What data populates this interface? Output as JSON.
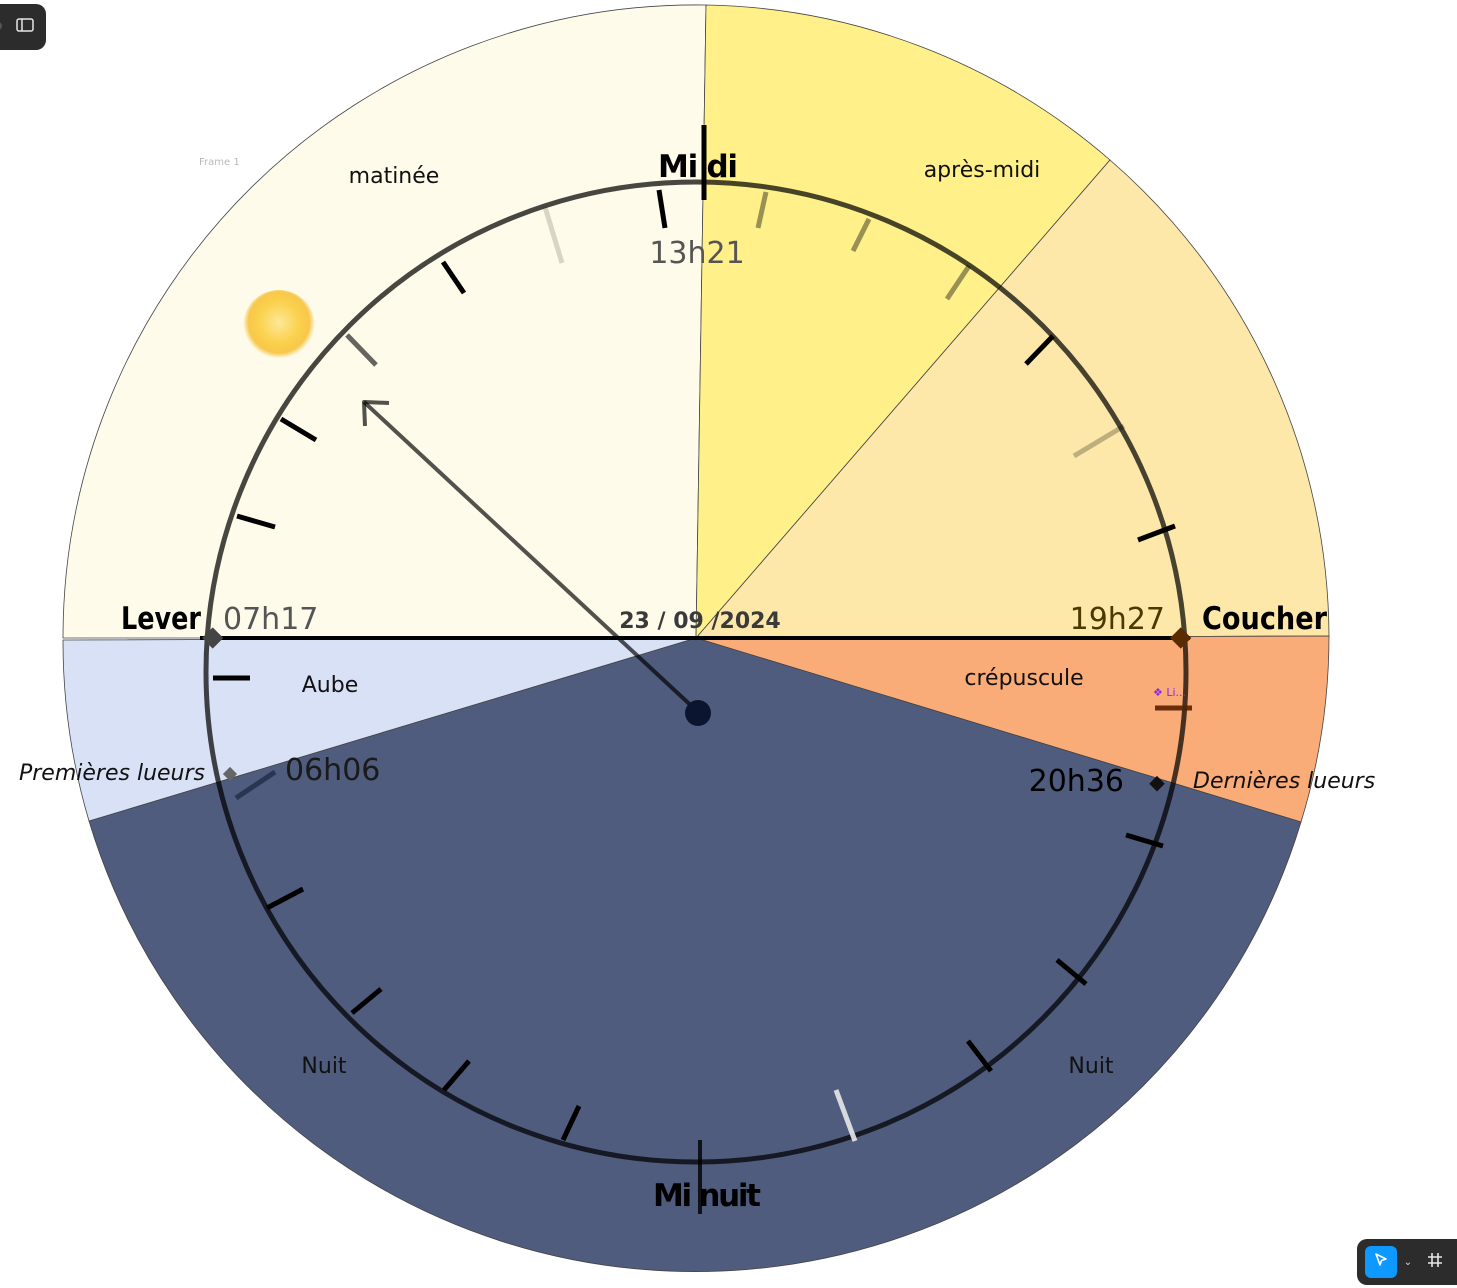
{
  "editor": {
    "frame_label": "Frame 1",
    "tools": {
      "active": "move-tool",
      "caret": "⌄",
      "frame": "frame-tool"
    }
  },
  "segments": {
    "matinee": "matinée",
    "apres_midi": "après-midi",
    "aube": "Aube",
    "crepuscule": "crépuscule",
    "nuit_left": "Nuit",
    "nuit_right": "Nuit"
  },
  "markers": {
    "midi": "Mi di",
    "minuit": "Mi nuit",
    "lever": "Lever",
    "coucher": "Coucher",
    "premieres_lueurs": "Premières lueurs",
    "dernieres_lueurs": "Dernières lueurs"
  },
  "times": {
    "current": "13h21",
    "lever": "07h17",
    "coucher": "19h27",
    "premieres_lueurs": "06h06",
    "dernieres_lueurs": "20h36"
  },
  "date": "23 / 09 /2024",
  "component_tag": "❖ Li...",
  "colors": {
    "matinee": "#fefbea",
    "apres_midi": "#fff08a",
    "soiree": "#fde8aa",
    "crepuscule": "#f9ab78",
    "aube": "#d9e1f6",
    "nuit": "#4f5c7d",
    "dial": "#000000",
    "sun": "#fbd24e"
  }
}
